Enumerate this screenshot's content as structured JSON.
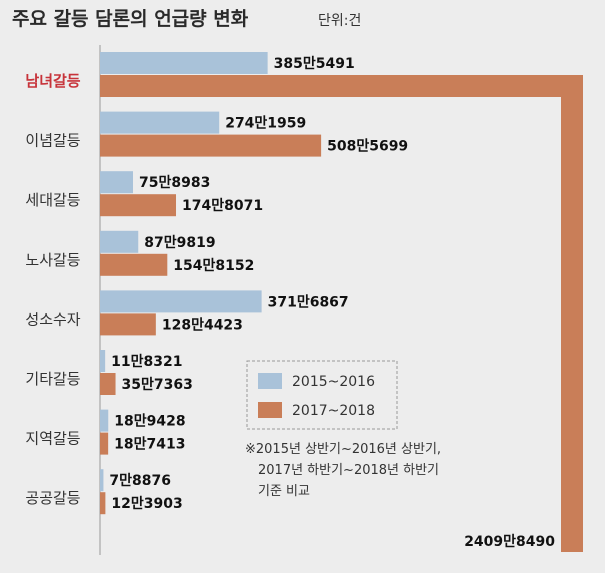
{
  "chart_data": {
    "type": "bar",
    "title": "주요 갈등 담론의 언급량 변화",
    "unit_label": "단위:건",
    "categories": [
      "남녀갈등",
      "이념갈등",
      "세대갈등",
      "노사갈등",
      "성소수자",
      "기타갈등",
      "지역갈등",
      "공공갈등"
    ],
    "highlight_category": "남녀갈등",
    "series": [
      {
        "name": "2015~2016",
        "color": "#a9c2d9",
        "values": [
          3855491,
          2741959,
          758983,
          879819,
          3716867,
          118321,
          189428,
          78876
        ],
        "labels": [
          "385만5491",
          "274만1959",
          "75만8983",
          "87만9819",
          "371만6867",
          "11만8321",
          "18만9428",
          "7만8876"
        ]
      },
      {
        "name": "2017~2018",
        "color": "#c97e58",
        "values": [
          24098490,
          5085699,
          1748071,
          1548152,
          1284423,
          357363,
          187413,
          123903
        ],
        "labels": [
          "2409만8490",
          "508만5699",
          "174만8071",
          "154만8152",
          "128만4423",
          "35만7363",
          "18만7413",
          "12만3903"
        ]
      }
    ],
    "note_lines": [
      "※2015년 상반기~2016년 상반기,",
      "2017년 하반기~2018년 하반기",
      "기준 비교"
    ],
    "legend_placement": "inside-right-middle"
  },
  "colors": {
    "background": "#ededed",
    "highlight_text": "#c7333a",
    "axis": "#999999"
  }
}
